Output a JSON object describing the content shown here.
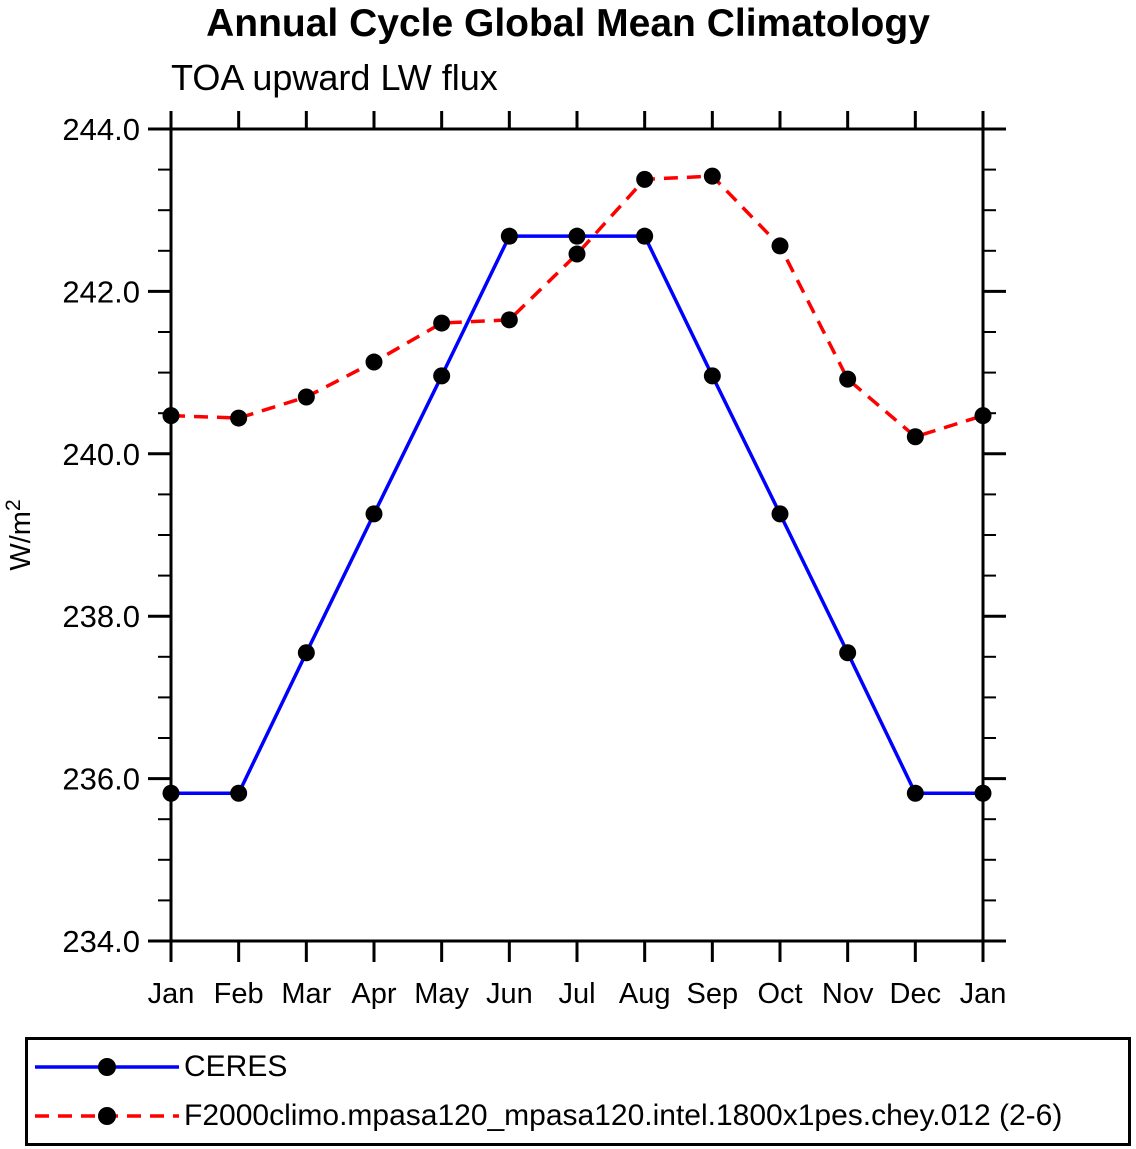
{
  "chart_data": {
    "type": "line",
    "title": "Annual Cycle Global Mean Climatology",
    "subtitle": "TOA upward LW flux",
    "xlabel": "",
    "ylabel": "W/m²",
    "x_categories": [
      "Jan",
      "Feb",
      "Mar",
      "Apr",
      "May",
      "Jun",
      "Jul",
      "Aug",
      "Sep",
      "Oct",
      "Nov",
      "Dec",
      "Jan"
    ],
    "ylim": [
      234.0,
      244.0
    ],
    "ytick_labels": [
      "234.0",
      "236.0",
      "238.0",
      "240.0",
      "242.0",
      "244.0"
    ],
    "ytick_interval_major": 2.0,
    "ytick_interval_minor": 0.5,
    "grid": false,
    "legend_position": "bottom-box",
    "frame_color": "#000000",
    "marker_color": "#000000",
    "series": [
      {
        "name": "CERES",
        "line_color": "#0000ff",
        "line_style": "solid",
        "marker": "filled-circle",
        "values": [
          235.82,
          235.82,
          237.55,
          239.26,
          240.96,
          242.68,
          242.68,
          242.68,
          240.96,
          239.26,
          237.55,
          235.82,
          235.82
        ]
      },
      {
        "name": "F2000climo.mpasa120_mpasa120.intel.1800x1pes.chey.012 (2-6)",
        "line_color": "#ff0000",
        "line_style": "dashed",
        "marker": "filled-circle",
        "values": [
          240.47,
          240.44,
          240.7,
          241.13,
          241.61,
          241.65,
          242.46,
          243.38,
          243.42,
          242.56,
          240.92,
          240.21,
          240.47
        ]
      }
    ]
  }
}
